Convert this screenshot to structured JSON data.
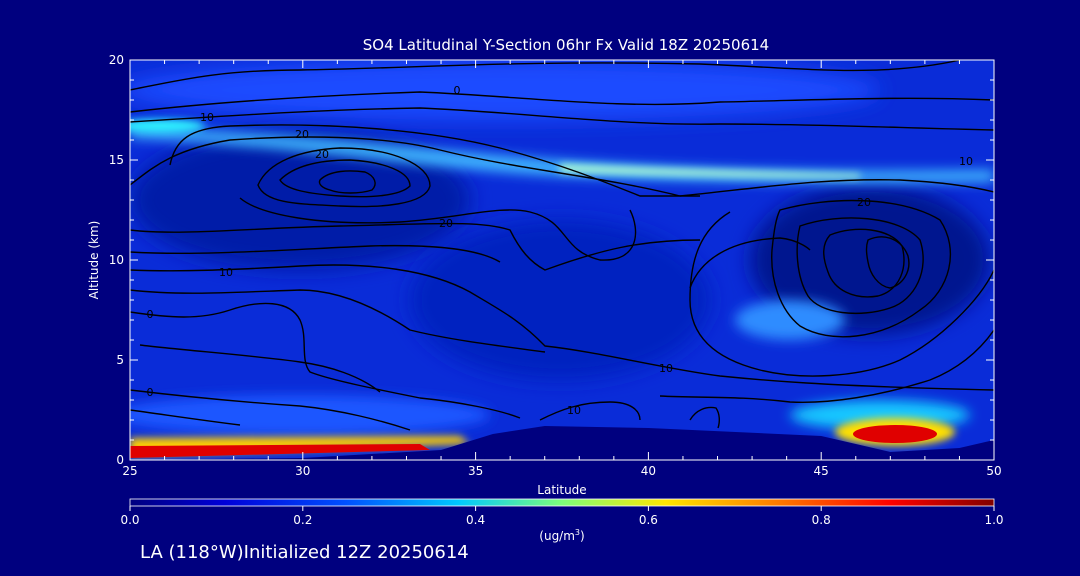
{
  "chart_data": {
    "type": "heatmap",
    "title": "SO4 Latitudinal Y-Section 06hr  Fx Valid 18Z 20250614",
    "xlabel": "Latitude",
    "ylabel": "Altitude (km)",
    "xlim": [
      25,
      50
    ],
    "ylim": [
      0,
      20
    ],
    "x_ticks": [
      "25",
      "30",
      "35",
      "40",
      "45",
      "50"
    ],
    "y_ticks": [
      "0",
      "5",
      "10",
      "15",
      "20"
    ],
    "colorbar": {
      "ticks": [
        "0.0",
        "0.2",
        "0.4",
        "0.6",
        "0.8",
        "1.0"
      ],
      "range": [
        0.0,
        1.0
      ],
      "unit_label": "(ug/m",
      "unit_exp": "3",
      "unit_close": ")"
    },
    "contour_labels": [
      "0",
      "10",
      "20",
      "20",
      "20",
      "10",
      "10",
      "0",
      "0",
      "10",
      "20",
      "10"
    ],
    "concentration_features": [
      {
        "lat": 30,
        "alt_km": 0.2,
        "value": 1.0
      },
      {
        "lat": 47,
        "alt_km": 0.9,
        "value": 1.0
      },
      {
        "lat": 41,
        "alt_km": 14.2,
        "value": 0.5
      },
      {
        "lat": 27,
        "alt_km": 16.5,
        "value": 0.45
      },
      {
        "lat": 46,
        "alt_km": 7.0,
        "value": 0.35
      }
    ],
    "terrain_km": [
      [
        25,
        0.0
      ],
      [
        30,
        0.1
      ],
      [
        34,
        0.5
      ],
      [
        35.5,
        1.3
      ],
      [
        37,
        1.7
      ],
      [
        40,
        1.6
      ],
      [
        45,
        1.2
      ],
      [
        47,
        0.4
      ],
      [
        49,
        0.6
      ],
      [
        50,
        1.0
      ]
    ]
  },
  "footer": "LA (118°W)Initialized 12Z 20250614"
}
